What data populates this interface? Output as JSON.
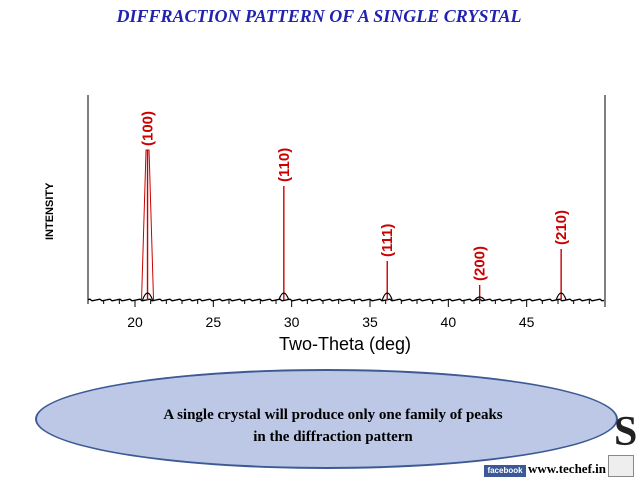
{
  "slide": {
    "title": "DIFFRACTION PATTERN OF A SINGLE CRYSTAL"
  },
  "callout": {
    "line1": "A single crystal will produce only one family of peaks",
    "line2": "in the diffraction pattern"
  },
  "footer": {
    "facebook_label": "facebook",
    "site": "www.techef.in"
  },
  "colors": {
    "title": "#2222b0",
    "peak": "#cc0000",
    "callout_fill": "#bcc8e6",
    "callout_border": "#3d5a95"
  },
  "chart_data": {
    "type": "line",
    "xlabel": "Two-Theta (deg)",
    "ylabel": "INTENSITY",
    "xlim": [
      17,
      50
    ],
    "ylim": [
      0,
      100
    ],
    "x_ticks": [
      20,
      25,
      30,
      35,
      40,
      45
    ],
    "grid": false,
    "peaks": [
      {
        "label": "(100)",
        "two_theta": 20.8,
        "intensity": 100
      },
      {
        "label": "(110)",
        "two_theta": 29.5,
        "intensity": 76
      },
      {
        "label": "(111)",
        "two_theta": 36.1,
        "intensity": 26
      },
      {
        "label": "(200)",
        "two_theta": 42.0,
        "intensity": 10
      },
      {
        "label": "(210)",
        "two_theta": 47.2,
        "intensity": 34
      }
    ]
  }
}
